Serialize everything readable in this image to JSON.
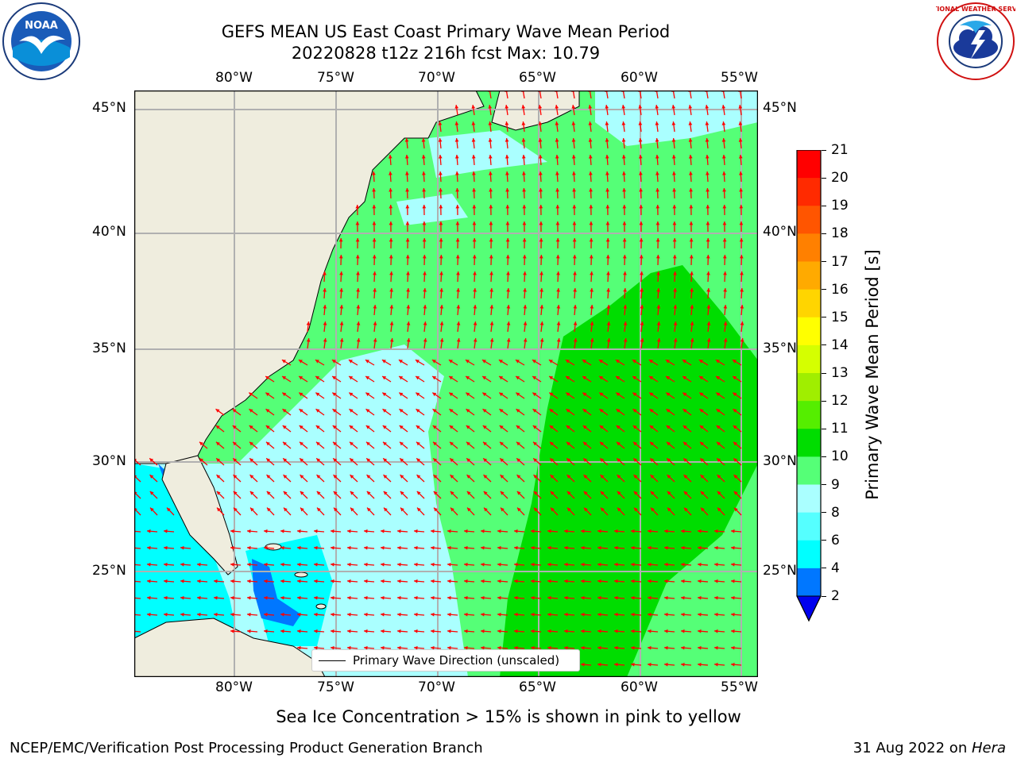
{
  "title": {
    "line1": "GEFS MEAN US East Coast Primary Wave Mean Period",
    "line2": "20220828 t12z 216h fcst   Max: 10.79"
  },
  "logos": {
    "left_text": "NOAA",
    "right_text": "NATIONAL WEATHER SERVICE"
  },
  "map": {
    "lon_ticks": [
      "80°W",
      "75°W",
      "70°W",
      "65°W",
      "60°W",
      "55°W"
    ],
    "lat_ticks": [
      "45°N",
      "40°N",
      "35°N",
      "30°N",
      "25°N"
    ],
    "lon_range": [
      -85,
      -54.4
    ],
    "lat_range": [
      20.5,
      46
    ],
    "legend_label": "Primary Wave Direction (unscaled)",
    "arrow_color": "#ff0000",
    "land_color": "#efedde",
    "arrow_dir_north": "north",
    "arrow_dir_east": "east"
  },
  "colorbar": {
    "label": "Primary Wave Mean Period [s]",
    "ticks": [
      "21",
      "20",
      "19",
      "18",
      "17",
      "16",
      "15",
      "14",
      "13",
      "12",
      "11",
      "10",
      "9",
      "8",
      "6",
      "4",
      "2"
    ],
    "colors": [
      "#ff0000",
      "#ff2a00",
      "#ff5500",
      "#ff8000",
      "#ffaa00",
      "#ffd500",
      "#ffff00",
      "#d5ff00",
      "#a0ee00",
      "#55ee00",
      "#00dd00",
      "#55ff77",
      "#aaffff",
      "#55ffff",
      "#00ffff",
      "#0077ff",
      "#0000ee"
    ]
  },
  "caption": "Sea Ice Concentration > 15% is shown in pink to yellow",
  "footer": {
    "left": "NCEP/EMC/Verification Post Processing Product Generation Branch",
    "right_date": "31 Aug 2022 on ",
    "right_host": "Hera"
  }
}
